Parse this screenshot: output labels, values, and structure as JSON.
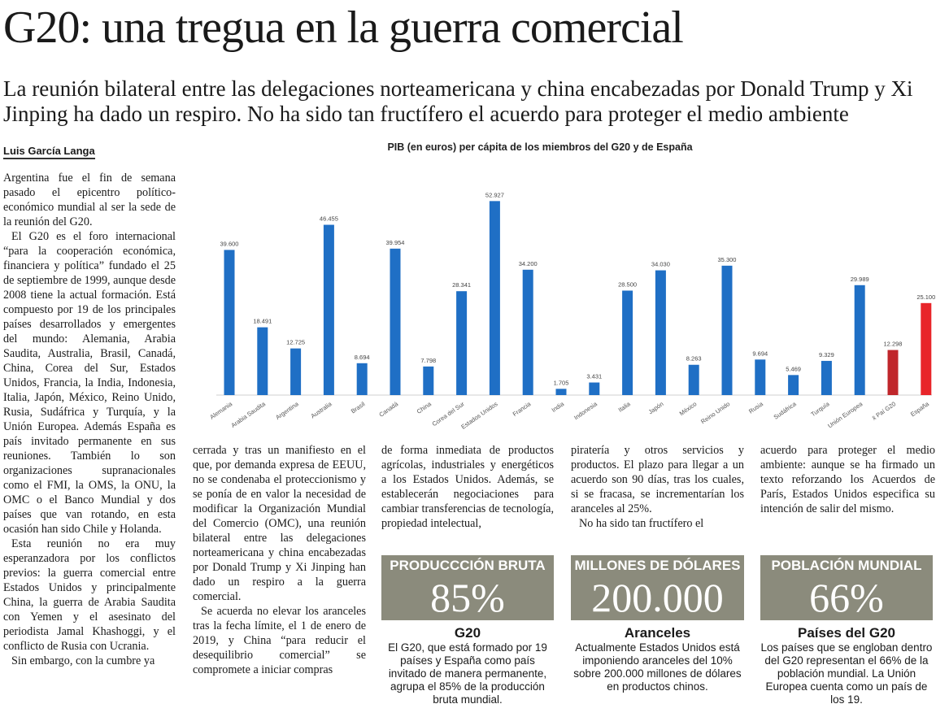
{
  "headline": "G20: una tregua en la guerra comercial",
  "subheadline": "La reunión bilateral entre las delegaciones norteamericana y china encabezadas por Donald Trump y Xi Jinping ha dado un respiro. No ha sido tan fructífero el acuerdo para proteger el medio ambiente",
  "byline": "Luis García Langa",
  "columns": {
    "col1": [
      "Argentina fue el fin de semana pasado el epicentro político-económico mundial al ser la sede de la reunión del G20.",
      "El G20 es el foro internacional “para la cooperación económica, financiera y política” fundado el 25 de septiembre de 1999, aunque desde 2008 tiene la actual formación. Está compuesto por 19 de los principales países desarrollados y emergentes del mundo: Alemania, Arabia Saudita, Australia, Brasil, Canadá, China, Corea del Sur, Estados Unidos, Francia, la India, Indonesia, Italia, Japón, México, Reino Unido, Rusia, Sudáfrica y Turquía, y la Unión Europea. Además España es país invitado permanente en sus reuniones. También lo son organizaciones supranacionales como el FMI, la OMS, la ONU, la OMC o el Banco Mundial y dos países que van rotando, en esta ocasión han sido Chile y Holanda.",
      "Esta reunión no era muy esperanzadora por los conflictos previos: la guerra comercial entre Estados Unidos y principalmente China, la guerra de Arabia Saudita con Yemen y el asesinato del periodista Jamal Khashoggi, y el conflicto de Rusia con Ucrania.",
      "Sin embargo, con la cumbre ya"
    ],
    "col2": [
      "cerrada y tras un manifiesto en el que, por demanda expresa de EEUU, no se condenaba el proteccionismo y se ponía de en valor la necesidad de modificar la Organización Mundial del Comercio (OMC), una reunión bilateral entre las delegaciones norteamericana y china encabezadas por Donald Trump y Xi Jinping han dado un respiro a la guerra comercial.",
      "Se acuerda no elevar los aranceles tras la fecha límite, el 1 de enero de 2019, y China “para reducir el desequilibrio comercial” se compromete a iniciar compras"
    ],
    "col3": [
      "de forma inmediata de productos agrícolas, industriales y energéticos a los Estados Unidos. Además, se establecerán negociaciones para cambiar transferencias de tecnología, propiedad intelectual,"
    ],
    "col4": [
      "piratería y otros servicios y productos. El plazo para llegar a un acuerdo son 90 días, tras los cuales, si se fracasa, se incrementarían los aranceles al 25%.",
      "No ha sido tan fructífero el"
    ],
    "col5": [
      "acuerdo para proteger el medio ambiente: aunque se ha firmado un texto reforzando los Acuerdos de París, Estados Unidos especifica su intención de salir del mismo."
    ]
  },
  "stats": [
    {
      "label": "PRODUCCCIÓN BRUTA",
      "value": "85%",
      "title": "G20",
      "text": "El G20, que está formado por 19 países y España como país invitado de manera permanente, agrupa el 85% de la producción bruta mundial."
    },
    {
      "label": "MILLONES DE DÓLARES",
      "value": "200.000",
      "title": "Aranceles",
      "text": "Actualmente Estados Unidos está imponiendo aranceles del 10% sobre 200.000 millones de dólares en productos chinos."
    },
    {
      "label": "POBLACIÓN MUNDIAL",
      "value": "66%",
      "title": "Países del G20",
      "text": "Los países que se engloban dentro del G20 representan el 66% de la población mundial. La Unión Europea cuenta como un país de los 19."
    }
  ],
  "colors": {
    "bar_blue": "#1f6fc5",
    "bar_dark_red": "#c0262b",
    "bar_red": "#e8252a",
    "stat_box": "#8b8b7c"
  },
  "chart_data": {
    "type": "bar",
    "title": "PIB (en euros) per cápita de los miembros del G20 y de España",
    "categories": [
      "Alemania",
      "Arabia Saudita",
      "Argentina",
      "Australia",
      "Brasil",
      "Canadá",
      "China",
      "Corea del Sur",
      "Estados Unidos",
      "Francia",
      "India",
      "Indonesia",
      "Italia",
      "Japón",
      "México",
      "Reino Unido",
      "Rusia",
      "Sudáfrica",
      "Turquía",
      "Unión Europea",
      "x̄ Paí G20",
      "España"
    ],
    "values": [
      39600,
      18491,
      12725,
      46455,
      8694,
      39954,
      7798,
      28341,
      52927,
      34200,
      1705,
      3431,
      28500,
      34030,
      8263,
      35300,
      9694,
      5469,
      9329,
      29989,
      12298,
      25100
    ],
    "labels": [
      "39.600",
      "18.491",
      "12.725",
      "46.455",
      "8.694",
      "39.954",
      "7.798",
      "28.341",
      "52.927",
      "34.200",
      "1.705",
      "3.431",
      "28.500",
      "34.030",
      "8.263",
      "35.300",
      "9.694",
      "5.469",
      "9.329",
      "29.989",
      "12.298",
      "25.100"
    ],
    "bar_colors": [
      "blue",
      "blue",
      "blue",
      "blue",
      "blue",
      "blue",
      "blue",
      "blue",
      "blue",
      "blue",
      "blue",
      "blue",
      "blue",
      "blue",
      "blue",
      "blue",
      "blue",
      "blue",
      "blue",
      "blue",
      "dark_red",
      "red"
    ],
    "ylim": [
      0,
      55000
    ],
    "grid": false
  }
}
